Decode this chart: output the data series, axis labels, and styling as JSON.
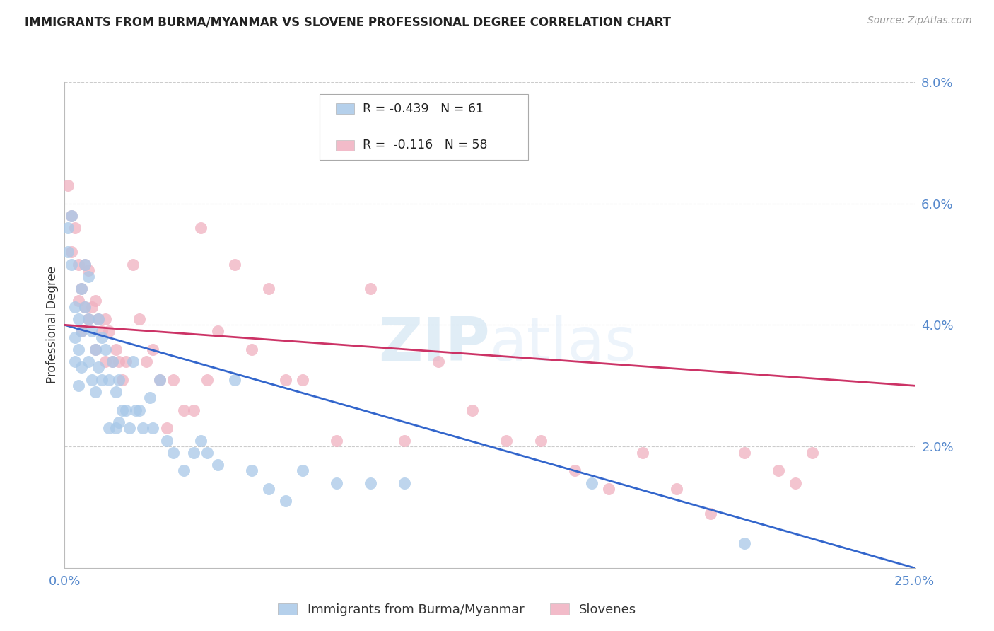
{
  "title": "IMMIGRANTS FROM BURMA/MYANMAR VS SLOVENE PROFESSIONAL DEGREE CORRELATION CHART",
  "source": "Source: ZipAtlas.com",
  "ylabel": "Professional Degree",
  "xlim": [
    0.0,
    0.25
  ],
  "ylim": [
    0.0,
    0.08
  ],
  "xtick_positions": [
    0.0,
    0.25
  ],
  "xticklabels": [
    "0.0%",
    "25.0%"
  ],
  "ytick_positions": [
    0.02,
    0.04,
    0.06,
    0.08
  ],
  "yticklabels": [
    "2.0%",
    "4.0%",
    "6.0%",
    "8.0%"
  ],
  "blue_label": "Immigrants from Burma/Myanmar",
  "pink_label": "Slovenes",
  "blue_R": -0.439,
  "blue_N": 61,
  "pink_R": -0.116,
  "pink_N": 58,
  "blue_scatter_color": "#a8c8e8",
  "pink_scatter_color": "#f0b0c0",
  "blue_line_color": "#3366cc",
  "pink_line_color": "#cc3366",
  "watermark_zip": "ZIP",
  "watermark_atlas": "atlas",
  "blue_x": [
    0.001,
    0.001,
    0.002,
    0.002,
    0.003,
    0.003,
    0.003,
    0.004,
    0.004,
    0.004,
    0.005,
    0.005,
    0.005,
    0.006,
    0.006,
    0.007,
    0.007,
    0.007,
    0.008,
    0.008,
    0.009,
    0.009,
    0.01,
    0.01,
    0.011,
    0.011,
    0.012,
    0.013,
    0.013,
    0.014,
    0.015,
    0.015,
    0.016,
    0.016,
    0.017,
    0.018,
    0.019,
    0.02,
    0.021,
    0.022,
    0.023,
    0.025,
    0.026,
    0.028,
    0.03,
    0.032,
    0.035,
    0.038,
    0.04,
    0.042,
    0.045,
    0.05,
    0.055,
    0.06,
    0.065,
    0.07,
    0.08,
    0.09,
    0.1,
    0.155,
    0.2
  ],
  "blue_y": [
    0.056,
    0.052,
    0.058,
    0.05,
    0.043,
    0.038,
    0.034,
    0.041,
    0.036,
    0.03,
    0.046,
    0.039,
    0.033,
    0.05,
    0.043,
    0.048,
    0.041,
    0.034,
    0.039,
    0.031,
    0.036,
    0.029,
    0.041,
    0.033,
    0.038,
    0.031,
    0.036,
    0.031,
    0.023,
    0.034,
    0.029,
    0.023,
    0.031,
    0.024,
    0.026,
    0.026,
    0.023,
    0.034,
    0.026,
    0.026,
    0.023,
    0.028,
    0.023,
    0.031,
    0.021,
    0.019,
    0.016,
    0.019,
    0.021,
    0.019,
    0.017,
    0.031,
    0.016,
    0.013,
    0.011,
    0.016,
    0.014,
    0.014,
    0.014,
    0.014,
    0.004
  ],
  "pink_x": [
    0.001,
    0.002,
    0.002,
    0.003,
    0.004,
    0.004,
    0.005,
    0.005,
    0.006,
    0.006,
    0.007,
    0.007,
    0.008,
    0.009,
    0.009,
    0.01,
    0.011,
    0.012,
    0.012,
    0.013,
    0.014,
    0.015,
    0.016,
    0.017,
    0.018,
    0.02,
    0.022,
    0.024,
    0.026,
    0.028,
    0.03,
    0.032,
    0.035,
    0.038,
    0.04,
    0.042,
    0.045,
    0.05,
    0.055,
    0.06,
    0.065,
    0.07,
    0.08,
    0.09,
    0.1,
    0.11,
    0.12,
    0.13,
    0.14,
    0.15,
    0.16,
    0.17,
    0.18,
    0.19,
    0.2,
    0.21,
    0.215,
    0.22
  ],
  "pink_y": [
    0.063,
    0.058,
    0.052,
    0.056,
    0.05,
    0.044,
    0.046,
    0.039,
    0.05,
    0.043,
    0.049,
    0.041,
    0.043,
    0.044,
    0.036,
    0.041,
    0.039,
    0.041,
    0.034,
    0.039,
    0.034,
    0.036,
    0.034,
    0.031,
    0.034,
    0.05,
    0.041,
    0.034,
    0.036,
    0.031,
    0.023,
    0.031,
    0.026,
    0.026,
    0.056,
    0.031,
    0.039,
    0.05,
    0.036,
    0.046,
    0.031,
    0.031,
    0.021,
    0.046,
    0.021,
    0.034,
    0.026,
    0.021,
    0.021,
    0.016,
    0.013,
    0.019,
    0.013,
    0.009,
    0.019,
    0.016,
    0.014,
    0.019
  ]
}
